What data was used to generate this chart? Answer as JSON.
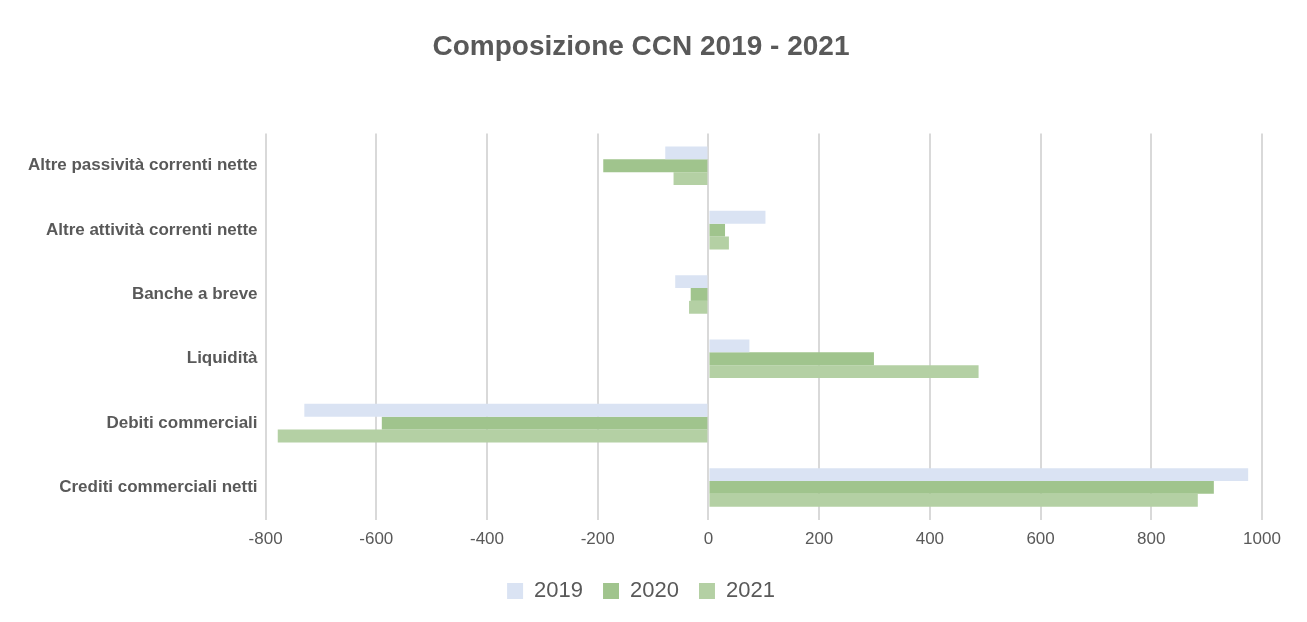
{
  "chart_data": {
    "type": "bar",
    "orientation": "horizontal",
    "title": "Composizione CCN 2019 - 2021",
    "categories": [
      "Altre passività correnti nette",
      "Altre attività correnti nette",
      "Banche a breve",
      "Liquidità",
      "Debiti commerciali",
      "Crediti commerciali netti"
    ],
    "series": [
      {
        "name": "2019",
        "color": "#dae3f3",
        "values": [
          -78,
          103,
          -60,
          74,
          -730,
          975
        ]
      },
      {
        "name": "2020",
        "color": "#a0c48d",
        "values": [
          -190,
          30,
          -32,
          299,
          -590,
          913
        ]
      },
      {
        "name": "2021",
        "color": "#b4d0a4",
        "values": [
          -63,
          37,
          -35,
          488,
          -778,
          884
        ]
      }
    ],
    "xlim": [
      -800,
      1000
    ],
    "xticks": [
      -800,
      -600,
      -400,
      -200,
      0,
      200,
      400,
      600,
      800,
      1000
    ],
    "grid": "x",
    "legend": "bottom"
  }
}
